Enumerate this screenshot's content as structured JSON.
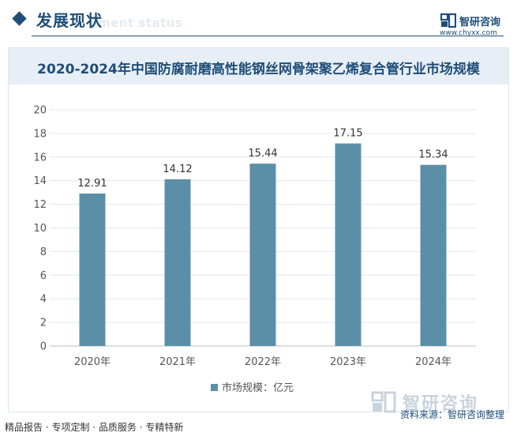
{
  "header": {
    "title": "发展现状",
    "subtitle_watermark": "ment status"
  },
  "brand": {
    "name": "智研咨询",
    "url": "www.chyxx.com",
    "footer_watermark": "智研咨询"
  },
  "footer": {
    "tagline": "精品报告 · 专项定制 · 品质服务 · 专精特新",
    "source": "资料来源：智研咨询整理"
  },
  "colors": {
    "primary": "#1f4e79",
    "bar": "#5b8fa8"
  },
  "chart_data": {
    "type": "bar",
    "title": "2020-2024年中国防腐耐磨高性能钢丝网骨架聚乙烯复合管行业市场规模",
    "categories": [
      "2020年",
      "2021年",
      "2022年",
      "2023年",
      "2024年"
    ],
    "series": [
      {
        "name": "市场规模：亿元",
        "values": [
          12.91,
          14.12,
          15.44,
          17.15,
          15.34
        ]
      }
    ],
    "value_labels": [
      "12.91",
      "14.12",
      "15.44",
      "17.15",
      "15.34"
    ],
    "yticks": [
      "0",
      "2",
      "4",
      "6",
      "8",
      "10",
      "12",
      "14",
      "16",
      "18",
      "20"
    ],
    "ylim": [
      0,
      20
    ],
    "grid": true,
    "legend_position": "bottom"
  }
}
